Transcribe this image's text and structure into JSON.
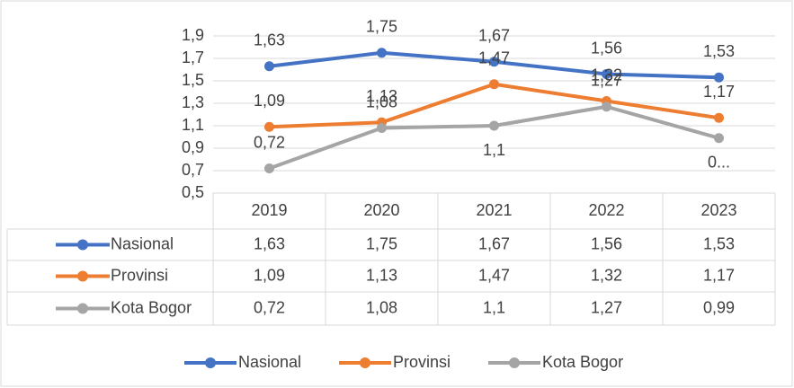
{
  "chart_data": {
    "type": "line",
    "categories": [
      "2019",
      "2020",
      "2021",
      "2022",
      "2023"
    ],
    "series": [
      {
        "name": "Nasional",
        "color": "#4472c4",
        "values": [
          1.63,
          1.75,
          1.67,
          1.56,
          1.53
        ],
        "value_labels": [
          "1,63",
          "1,75",
          "1,67",
          "1,56",
          "1,53"
        ]
      },
      {
        "name": "Provinsi",
        "color": "#ed7d31",
        "values": [
          1.09,
          1.13,
          1.47,
          1.32,
          1.17
        ],
        "value_labels": [
          "1,09",
          "1,13",
          "1,47",
          "1,32",
          "1,17"
        ]
      },
      {
        "name": "Kota Bogor",
        "color": "#a5a5a5",
        "values": [
          0.72,
          1.08,
          1.1,
          1.27,
          0.99
        ],
        "value_labels": [
          "0,72",
          "1,08",
          "1,1",
          "1,27",
          "0..."
        ]
      }
    ],
    "table": {
      "rows": [
        [
          "1,63",
          "1,75",
          "1,67",
          "1,56",
          "1,53"
        ],
        [
          "1,09",
          "1,13",
          "1,47",
          "1,32",
          "1,17"
        ],
        [
          "0,72",
          "1,08",
          "1,1",
          "1,27",
          "0,99"
        ]
      ]
    },
    "ylim": [
      0.5,
      1.9
    ],
    "yticks": [
      {
        "value": 0.5,
        "label": "0,5"
      },
      {
        "value": 0.7,
        "label": "0,7"
      },
      {
        "value": 0.9,
        "label": "0,9"
      },
      {
        "value": 1.1,
        "label": "1,1"
      },
      {
        "value": 1.3,
        "label": "1,3"
      },
      {
        "value": 1.5,
        "label": "1,5"
      },
      {
        "value": 1.7,
        "label": "1,7"
      },
      {
        "value": 1.9,
        "label": "1,9"
      }
    ],
    "grid": true
  }
}
